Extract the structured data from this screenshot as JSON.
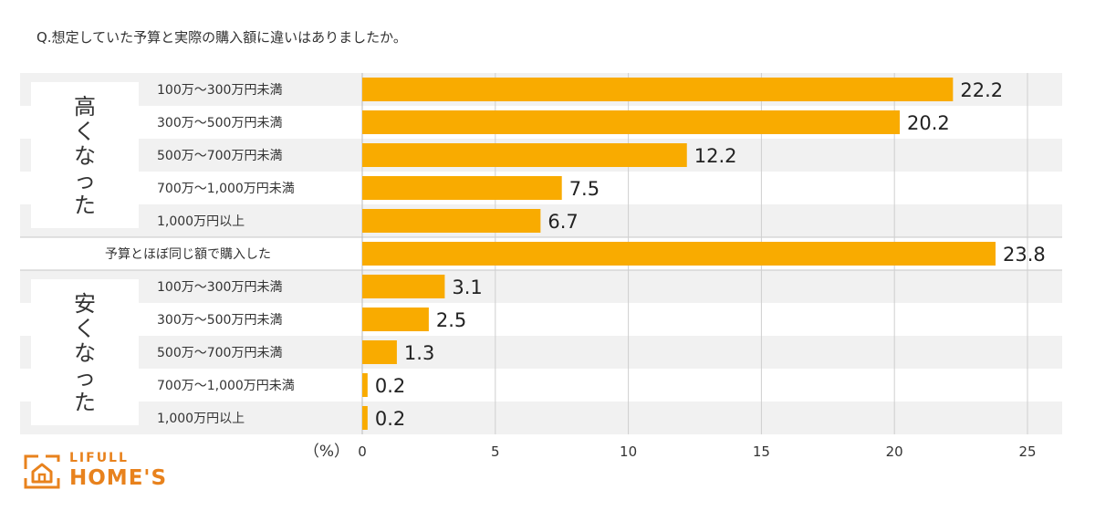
{
  "title": "Q.想定していた予算と実際の購入額に違いはありましたか。",
  "logo": {
    "top": "LIFULL",
    "main": "HOME'S",
    "icon": "house-icon",
    "color": "#e8821d"
  },
  "chart_data": {
    "type": "bar",
    "orientation": "horizontal",
    "unit_label": "（%）",
    "xlim": [
      0,
      25
    ],
    "xticks": [
      0,
      5,
      10,
      15,
      20,
      25
    ],
    "grid": true,
    "bar_color": "#f9ab00",
    "groups": [
      {
        "label": "高くなった",
        "items": [
          {
            "category": "100万〜300万円未満",
            "value": 22.2
          },
          {
            "category": "300万〜500万円未満",
            "value": 20.2
          },
          {
            "category": "500万〜700万円未満",
            "value": 12.2
          },
          {
            "category": "700万〜1,000万円未満",
            "value": 7.5
          },
          {
            "category": "1,000万円以上",
            "value": 6.7
          }
        ]
      },
      {
        "label": "",
        "items": [
          {
            "category": "予算とほぼ同じ額で購入した",
            "value": 23.8
          }
        ]
      },
      {
        "label": "安くなった",
        "items": [
          {
            "category": "100万〜300万円未満",
            "value": 3.1
          },
          {
            "category": "300万〜500万円未満",
            "value": 2.5
          },
          {
            "category": "500万〜700万円未満",
            "value": 1.3
          },
          {
            "category": "700万〜1,000万円未満",
            "value": 0.2
          },
          {
            "category": "1,000万円以上",
            "value": 0.2
          }
        ]
      }
    ]
  }
}
